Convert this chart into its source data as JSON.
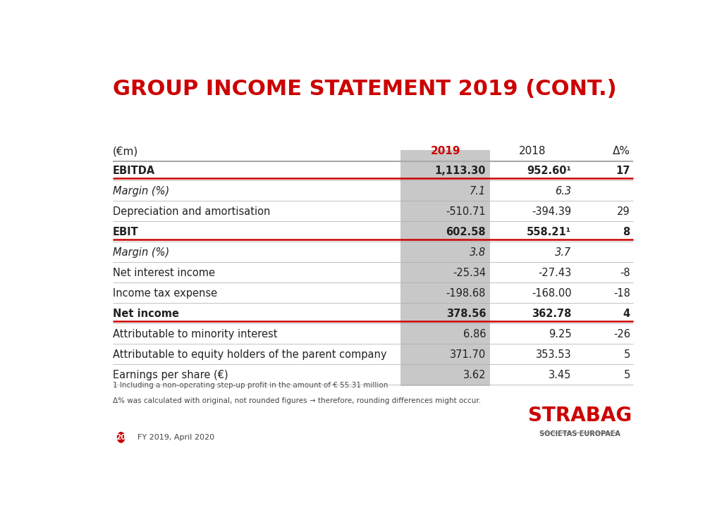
{
  "title": "GROUP INCOME STATEMENT 2019 (CONT.)",
  "title_color": "#CC0000",
  "title_fontsize": 22,
  "header_row": [
    "(€m)",
    "2019",
    "2018",
    "Δ%"
  ],
  "header_2019_color": "#CC0000",
  "rows": [
    {
      "label": "EBITDA",
      "val2019": "1,113.30",
      "val2018": "952.60¹",
      "delta": "17",
      "bold": true,
      "red_line_below": true
    },
    {
      "label": "Margin (%)",
      "val2019": "7.1",
      "val2018": "6.3",
      "delta": "",
      "bold": false,
      "italic": true
    },
    {
      "label": "Depreciation and amortisation",
      "val2019": "-510.71",
      "val2018": "-394.39",
      "delta": "29",
      "bold": false
    },
    {
      "label": "EBIT",
      "val2019": "602.58",
      "val2018": "558.21¹",
      "delta": "8",
      "bold": true,
      "red_line_below": true
    },
    {
      "label": "Margin (%)",
      "val2019": "3.8",
      "val2018": "3.7",
      "delta": "",
      "bold": false,
      "italic": true
    },
    {
      "label": "Net interest income",
      "val2019": "-25.34",
      "val2018": "-27.43",
      "delta": "-8",
      "bold": false
    },
    {
      "label": "Income tax expense",
      "val2019": "-198.68",
      "val2018": "-168.00",
      "delta": "-18",
      "bold": false
    },
    {
      "label": "Net income",
      "val2019": "378.56",
      "val2018": "362.78",
      "delta": "4",
      "bold": true,
      "red_line_below": true
    },
    {
      "label": "Attributable to minority interest",
      "val2019": "6.86",
      "val2018": "9.25",
      "delta": "-26",
      "bold": false
    },
    {
      "label": "Attributable to equity holders of the parent company",
      "val2019": "371.70",
      "val2018": "353.53",
      "delta": "5",
      "bold": false
    },
    {
      "label": "Earnings per share (€)",
      "val2019": "3.62",
      "val2018": "3.45",
      "delta": "5",
      "bold": false
    }
  ],
  "footnote1": "1 Including a non-operating step-up profit in the amount of € 55.31 million",
  "footnote2": "Δ% was calculated with original, not rounded figures → therefore, rounding differences might occur.",
  "footer_page": "20",
  "footer_text": "FY 2019, April 2020",
  "strabag_text": "STRABAG",
  "societas_text": "SOCIETAS EUROPAEA",
  "bg_color": "#FFFFFF",
  "grey_col_color": "#C8C8C8",
  "table_line_color": "#AAAAAA",
  "red_line_color": "#CC0000",
  "text_color": "#444444",
  "dark_text_color": "#222222"
}
